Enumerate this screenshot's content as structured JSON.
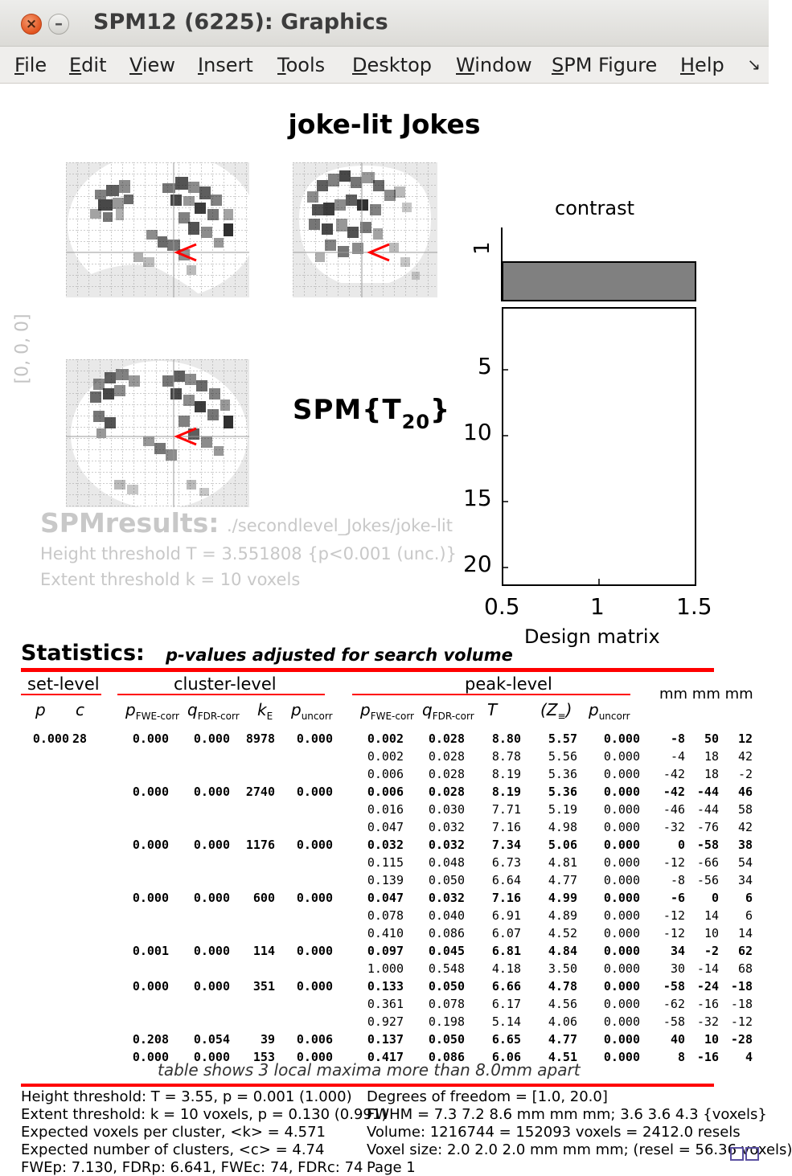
{
  "window": {
    "title": "SPM12 (6225): Graphics",
    "close_glyph": "×",
    "min_glyph": "–"
  },
  "menu": {
    "items": [
      {
        "u": "F",
        "rest": "ile"
      },
      {
        "u": "E",
        "rest": "dit"
      },
      {
        "u": "V",
        "rest": "iew"
      },
      {
        "u": "I",
        "rest": "nsert"
      },
      {
        "u": "T",
        "rest": "ools"
      },
      {
        "u": "D",
        "rest": "esktop"
      },
      {
        "u": "W",
        "rest": "indow"
      },
      {
        "u": "S",
        "rest": "PM Figure"
      },
      {
        "u": "H",
        "rest": "elp"
      }
    ],
    "arrow": "↘"
  },
  "figure": {
    "title": "joke-lit Jokes",
    "spm_label_main": "SPM{T",
    "spm_label_sub": "20",
    "spm_label_close": "}",
    "side_coords": "[0, 0, 0]",
    "results_heading": "SPMresults:",
    "results_path": "./secondlevel_Jokes/joke-lit",
    "height_threshold": "Height threshold T = 3.551808  {p<0.001 (unc.)}",
    "extent_threshold": "Extent threshold k = 10 voxels",
    "contrast_label": "contrast",
    "contrast_row_tick": "1",
    "contrast_weight": 1,
    "design_matrix_title": "Design matrix",
    "dm_y_ticks": [
      "5",
      "10",
      "15",
      "20"
    ],
    "dm_x_ticks": [
      "0.5",
      "1",
      "1.5"
    ],
    "colors": {
      "contrast_bar": "#808080",
      "maxima_marker": "#ff0000",
      "red_rule": "#ff0000"
    }
  },
  "stats": {
    "heading": "Statistics:",
    "subheading": "p-values adjusted for search volume",
    "groups": {
      "set": "set-level",
      "cluster": "cluster-level",
      "peak": "peak-level",
      "mm": "mm mm mm"
    },
    "col_headers": {
      "set_p": "p",
      "set_c": "c",
      "c_fwe": "p",
      "c_fwe_sub": "FWE-corr",
      "c_fdr": "q",
      "c_fdr_sub": "FDR-corr",
      "ke": "k",
      "ke_sub": "E",
      "c_unc": "p",
      "c_unc_sub": "uncorr",
      "p_fwe": "p",
      "p_fwe_sub": "FWE-corr",
      "p_fdr": "q",
      "p_fdr_sub": "FDR-corr",
      "t": "T",
      "z": "(Z",
      "z_sub": "≡",
      "z_close": ")",
      "p_unc": "p",
      "p_unc_sub": "uncorr"
    },
    "rows": [
      {
        "bold": true,
        "set_p": "0.000",
        "set_c": "28",
        "c_fwe": "0.000",
        "c_fdr": "0.000",
        "ke": "8978",
        "c_unc": "0.000",
        "p_fwe": "0.002",
        "p_fdr": "0.028",
        "t": "8.80",
        "z": "5.57",
        "p_unc": "0.000",
        "x": "-8",
        "y": "50",
        "zc": "12"
      },
      {
        "bold": false,
        "p_fwe": "0.002",
        "p_fdr": "0.028",
        "t": "8.78",
        "z": "5.56",
        "p_unc": "0.000",
        "x": "-4",
        "y": "18",
        "zc": "42"
      },
      {
        "bold": false,
        "p_fwe": "0.006",
        "p_fdr": "0.028",
        "t": "8.19",
        "z": "5.36",
        "p_unc": "0.000",
        "x": "-42",
        "y": "18",
        "zc": "-2"
      },
      {
        "bold": true,
        "c_fwe": "0.000",
        "c_fdr": "0.000",
        "ke": "2740",
        "c_unc": "0.000",
        "p_fwe": "0.006",
        "p_fdr": "0.028",
        "t": "8.19",
        "z": "5.36",
        "p_unc": "0.000",
        "x": "-42",
        "y": "-44",
        "zc": "46"
      },
      {
        "bold": false,
        "p_fwe": "0.016",
        "p_fdr": "0.030",
        "t": "7.71",
        "z": "5.19",
        "p_unc": "0.000",
        "x": "-46",
        "y": "-44",
        "zc": "58"
      },
      {
        "bold": false,
        "p_fwe": "0.047",
        "p_fdr": "0.032",
        "t": "7.16",
        "z": "4.98",
        "p_unc": "0.000",
        "x": "-32",
        "y": "-76",
        "zc": "42"
      },
      {
        "bold": true,
        "c_fwe": "0.000",
        "c_fdr": "0.000",
        "ke": "1176",
        "c_unc": "0.000",
        "p_fwe": "0.032",
        "p_fdr": "0.032",
        "t": "7.34",
        "z": "5.06",
        "p_unc": "0.000",
        "x": "0",
        "y": "-58",
        "zc": "38"
      },
      {
        "bold": false,
        "p_fwe": "0.115",
        "p_fdr": "0.048",
        "t": "6.73",
        "z": "4.81",
        "p_unc": "0.000",
        "x": "-12",
        "y": "-66",
        "zc": "54"
      },
      {
        "bold": false,
        "p_fwe": "0.139",
        "p_fdr": "0.050",
        "t": "6.64",
        "z": "4.77",
        "p_unc": "0.000",
        "x": "-8",
        "y": "-56",
        "zc": "34"
      },
      {
        "bold": true,
        "c_fwe": "0.000",
        "c_fdr": "0.000",
        "ke": "600",
        "c_unc": "0.000",
        "p_fwe": "0.047",
        "p_fdr": "0.032",
        "t": "7.16",
        "z": "4.99",
        "p_unc": "0.000",
        "x": "-6",
        "y": "0",
        "zc": "6"
      },
      {
        "bold": false,
        "p_fwe": "0.078",
        "p_fdr": "0.040",
        "t": "6.91",
        "z": "4.89",
        "p_unc": "0.000",
        "x": "-12",
        "y": "14",
        "zc": "6"
      },
      {
        "bold": false,
        "p_fwe": "0.410",
        "p_fdr": "0.086",
        "t": "6.07",
        "z": "4.52",
        "p_unc": "0.000",
        "x": "-12",
        "y": "10",
        "zc": "14"
      },
      {
        "bold": true,
        "c_fwe": "0.001",
        "c_fdr": "0.000",
        "ke": "114",
        "c_unc": "0.000",
        "p_fwe": "0.097",
        "p_fdr": "0.045",
        "t": "6.81",
        "z": "4.84",
        "p_unc": "0.000",
        "x": "34",
        "y": "-2",
        "zc": "62"
      },
      {
        "bold": false,
        "p_fwe": "1.000",
        "p_fdr": "0.548",
        "t": "4.18",
        "z": "3.50",
        "p_unc": "0.000",
        "x": "30",
        "y": "-14",
        "zc": "68"
      },
      {
        "bold": true,
        "c_fwe": "0.000",
        "c_fdr": "0.000",
        "ke": "351",
        "c_unc": "0.000",
        "p_fwe": "0.133",
        "p_fdr": "0.050",
        "t": "6.66",
        "z": "4.78",
        "p_unc": "0.000",
        "x": "-58",
        "y": "-24",
        "zc": "-18"
      },
      {
        "bold": false,
        "p_fwe": "0.361",
        "p_fdr": "0.078",
        "t": "6.17",
        "z": "4.56",
        "p_unc": "0.000",
        "x": "-62",
        "y": "-16",
        "zc": "-18"
      },
      {
        "bold": false,
        "p_fwe": "0.927",
        "p_fdr": "0.198",
        "t": "5.14",
        "z": "4.06",
        "p_unc": "0.000",
        "x": "-58",
        "y": "-32",
        "zc": "-12"
      },
      {
        "bold": true,
        "c_fwe": "0.208",
        "c_fdr": "0.054",
        "ke": "39",
        "c_unc": "0.006",
        "p_fwe": "0.137",
        "p_fdr": "0.050",
        "t": "6.65",
        "z": "4.77",
        "p_unc": "0.000",
        "x": "40",
        "y": "10",
        "zc": "-28"
      },
      {
        "bold": true,
        "c_fwe": "0.000",
        "c_fdr": "0.000",
        "ke": "153",
        "c_unc": "0.000",
        "p_fwe": "0.417",
        "p_fdr": "0.086",
        "t": "6.06",
        "z": "4.51",
        "p_unc": "0.000",
        "x": "8",
        "y": "-16",
        "zc": "4"
      }
    ],
    "table_note": "table shows 3 local maxima more than 8.0mm apart"
  },
  "footer": {
    "left": [
      "Height threshold: T = 3.55, p = 0.001 (1.000)",
      "Extent threshold: k = 10 voxels, p = 0.130 (0.991)",
      "Expected voxels per cluster, <k> = 4.571",
      "Expected number of clusters, <c> = 4.74",
      "FWEp: 7.130, FDRp: 6.641, FWEc: 74, FDRc: 74"
    ],
    "right": [
      "Degrees of freedom = [1.0, 20.0]",
      "FWHM = 7.3 7.2 8.6 mm mm mm; 3.6 3.6 4.3 {voxels}",
      "Volume: 1216744 = 152093 voxels = 2412.0 resels",
      "Voxel size: 2.0 2.0 2.0 mm mm mm; (resel = 56.36 voxels)",
      "Page 1"
    ]
  }
}
